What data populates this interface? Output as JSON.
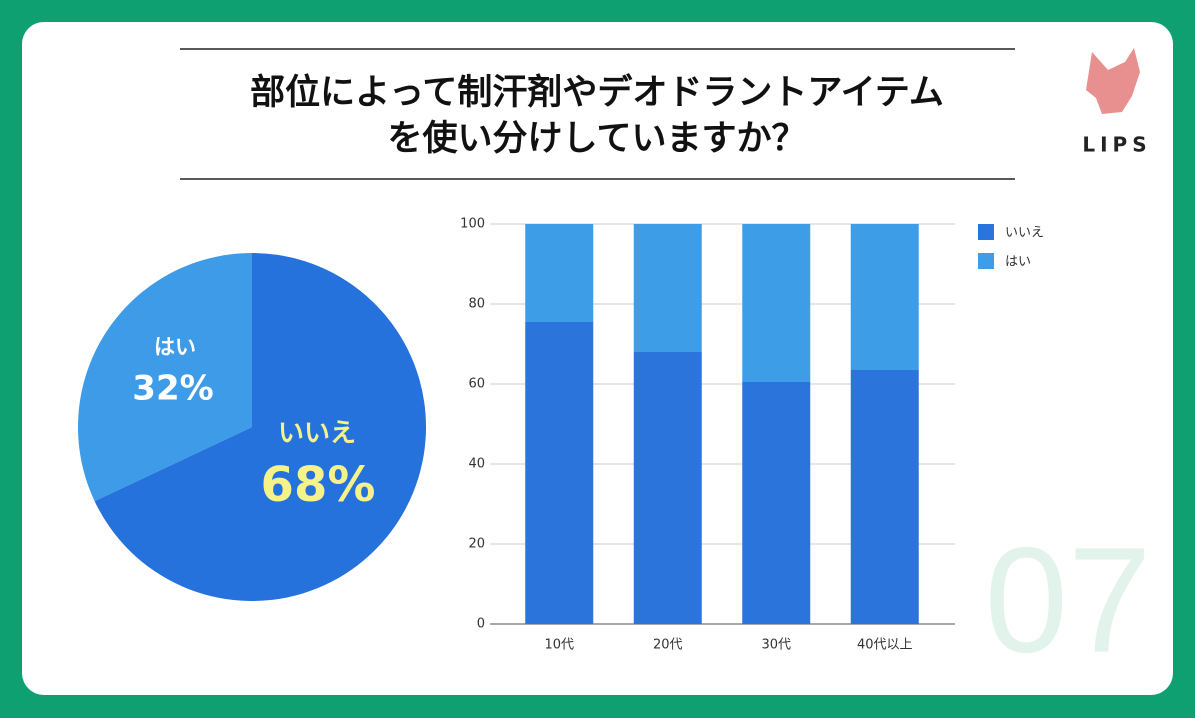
{
  "header": {
    "title_lines": [
      "部位によって制汗剤やデオドラントアイテム",
      "を使い分けしていますか？"
    ],
    "logo": "LIPS",
    "number": "07"
  },
  "chart_data": [
    {
      "type": "pie",
      "categories": [
        "いいえ",
        "はい"
      ],
      "values": [
        68,
        32
      ],
      "value_labels": [
        "68%",
        "32%"
      ],
      "colors": [
        "#2672dc",
        "#3d9be8"
      ]
    },
    {
      "type": "bar",
      "stacked": true,
      "categories": [
        "10代",
        "20代",
        "30代",
        "40代以上"
      ],
      "series": [
        {
          "name": "いいえ",
          "color": "#2a74dc",
          "values": [
            75.5,
            68,
            60.5,
            63.5
          ]
        },
        {
          "name": "はい",
          "color": "#3e9de7",
          "values": [
            24.5,
            32,
            39.5,
            36.5
          ]
        }
      ],
      "ylim": [
        0,
        100
      ],
      "yticks": [
        0,
        20,
        40,
        60,
        80,
        100
      ],
      "grid": true,
      "legend": "right"
    }
  ]
}
